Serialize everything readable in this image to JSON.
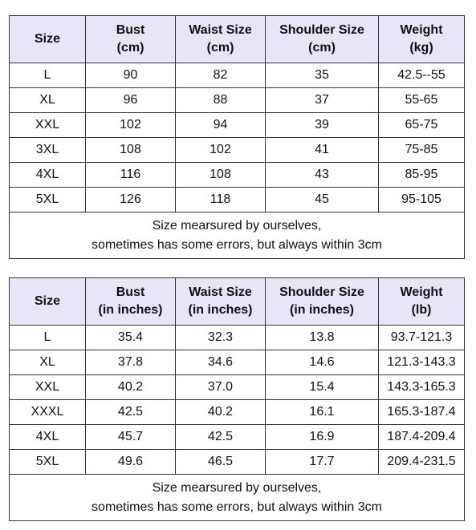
{
  "tables": [
    {
      "headers": [
        {
          "line1": "Size",
          "line2": ""
        },
        {
          "line1": "Bust",
          "line2": "(cm)"
        },
        {
          "line1": "Waist Size",
          "line2": "(cm)"
        },
        {
          "line1": "Shoulder Size",
          "line2": "(cm)"
        },
        {
          "line1": "Weight",
          "line2": "(kg)"
        }
      ],
      "rows": [
        [
          "L",
          "90",
          "82",
          "35",
          "42.5--55"
        ],
        [
          "XL",
          "96",
          "88",
          "37",
          "55-65"
        ],
        [
          "XXL",
          "102",
          "94",
          "39",
          "65-75"
        ],
        [
          "3XL",
          "108",
          "102",
          "41",
          "75-85"
        ],
        [
          "4XL",
          "116",
          "108",
          "43",
          "85-95"
        ],
        [
          "5XL",
          "126",
          "118",
          "45",
          "95-105"
        ]
      ],
      "note": {
        "line1": "Size mearsured by ourselves,",
        "line2": "sometimes has some errors, but always within 3cm"
      }
    },
    {
      "headers": [
        {
          "line1": "Size",
          "line2": ""
        },
        {
          "line1": "Bust",
          "line2": "(in inches)"
        },
        {
          "line1": "Waist Size",
          "line2": "(in inches)"
        },
        {
          "line1": "Shoulder Size",
          "line2": "(in inches)"
        },
        {
          "line1": "Weight",
          "line2": "(lb)"
        }
      ],
      "rows": [
        [
          "L",
          "35.4",
          "32.3",
          "13.8",
          "93.7-121.3"
        ],
        [
          "XL",
          "37.8",
          "34.6",
          "14.6",
          "121.3-143.3"
        ],
        [
          "XXL",
          "40.2",
          "37.0",
          "15.4",
          "143.3-165.3"
        ],
        [
          "XXXL",
          "42.5",
          "40.2",
          "16.1",
          "165.3-187.4"
        ],
        [
          "4XL",
          "45.7",
          "42.5",
          "16.9",
          "187.4-209.4"
        ],
        [
          "5XL",
          "49.6",
          "46.5",
          "17.7",
          "209.4-231.5"
        ]
      ],
      "note": {
        "line1": "Size mearsured by ourselves,",
        "line2": "sometimes has some errors, but always within 3cm"
      }
    }
  ],
  "colors": {
    "header_background": "#e6e6f7",
    "border": "#333333"
  }
}
